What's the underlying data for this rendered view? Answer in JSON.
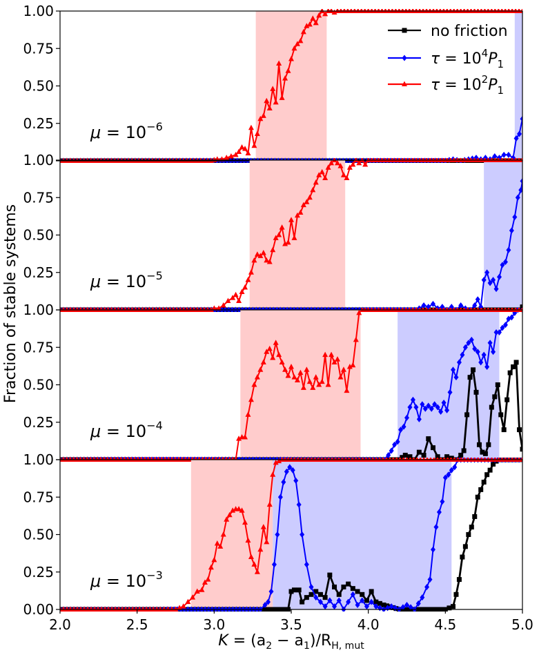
{
  "chart_data": {
    "type": "line",
    "ylabel": "Fraction of stable systems",
    "xlabel_parts": {
      "K": "K",
      "eq": " = (a",
      "s2": "2",
      "minus": " − a",
      "s1": "1",
      "close": ")/R",
      "sub": "H, mut"
    },
    "xlim": [
      2.0,
      5.0
    ],
    "ylim": [
      0.0,
      1.0
    ],
    "x_ticks": [
      "2.0",
      "2.5",
      "3.0",
      "3.5",
      "4.0",
      "4.5",
      "5.0"
    ],
    "y_ticks": [
      "0.00",
      "0.25",
      "0.50",
      "0.75",
      "1.00"
    ],
    "legend": [
      {
        "label": "no friction",
        "color": "#000000",
        "marker": "square"
      },
      {
        "label_base": "τ = 10",
        "label_exp": "4",
        "label_tail": "P",
        "label_sub": "1",
        "color": "#0000ff",
        "marker": "diamond"
      },
      {
        "label_base": "τ = 10",
        "label_exp": "2",
        "label_tail": "P",
        "label_sub": "1",
        "color": "#ff0000",
        "marker": "triangle"
      }
    ],
    "panels": [
      {
        "mu_base": "μ = 10",
        "mu_exp": "−6",
        "shaded": [
          {
            "x0": 3.27,
            "x1": 3.73,
            "color": "#ffcccc"
          },
          {
            "x0": 4.95,
            "x1": 5.0,
            "color": "#ccccff"
          }
        ],
        "series": {
          "red": {
            "x": [
              2.0,
              2.6,
              2.98,
              3.02,
              3.05,
              3.08,
              3.11,
              3.14,
              3.16,
              3.18,
              3.2,
              3.22,
              3.24,
              3.26,
              3.28,
              3.3,
              3.32,
              3.34,
              3.36,
              3.38,
              3.4,
              3.42,
              3.44,
              3.46,
              3.48,
              3.5,
              3.52,
              3.54,
              3.56,
              3.58,
              3.6,
              3.62,
              3.64,
              3.66,
              3.68,
              3.7,
              3.72,
              3.74,
              3.76,
              3.78,
              3.8,
              5.0
            ],
            "y": [
              0,
              0,
              0,
              0.01,
              0.01,
              0.02,
              0.03,
              0.04,
              0.06,
              0.09,
              0.08,
              0.05,
              0.22,
              0.1,
              0.18,
              0.28,
              0.3,
              0.4,
              0.35,
              0.48,
              0.39,
              0.65,
              0.42,
              0.55,
              0.6,
              0.68,
              0.75,
              0.78,
              0.8,
              0.86,
              0.9,
              0.91,
              0.95,
              0.92,
              0.97,
              1.0,
              0.98,
              1.0,
              1.0,
              0.99,
              1.0,
              1.0
            ]
          },
          "blue": {
            "x": [
              2.0,
              4.5,
              4.55,
              4.6,
              4.65,
              4.7,
              4.73,
              4.76,
              4.79,
              4.82,
              4.85,
              4.88,
              4.91,
              4.94,
              4.96,
              4.98,
              5.0
            ],
            "y": [
              0,
              0,
              0.01,
              0.0,
              0.01,
              0.02,
              0.01,
              0.02,
              0.01,
              0.03,
              0.02,
              0.04,
              0.04,
              0.02,
              0.15,
              0.18,
              0.28
            ]
          },
          "black": {
            "x": [
              2.0,
              5.0
            ],
            "y": [
              0,
              0
            ]
          }
        }
      },
      {
        "mu_base": "μ = 10",
        "mu_exp": "−5",
        "shaded": [
          {
            "x0": 3.23,
            "x1": 3.85,
            "color": "#ffcccc"
          },
          {
            "x0": 4.75,
            "x1": 5.0,
            "color": "#ccccff"
          }
        ],
        "series": {
          "red": {
            "x": [
              2.0,
              2.98,
              3.0,
              3.03,
              3.06,
              3.09,
              3.12,
              3.14,
              3.16,
              3.18,
              3.2,
              3.22,
              3.24,
              3.26,
              3.28,
              3.3,
              3.32,
              3.34,
              3.36,
              3.38,
              3.4,
              3.42,
              3.44,
              3.46,
              3.48,
              3.5,
              3.52,
              3.54,
              3.56,
              3.58,
              3.6,
              3.62,
              3.64,
              3.66,
              3.68,
              3.7,
              3.72,
              3.74,
              3.76,
              3.78,
              3.8,
              3.82,
              3.84,
              3.86,
              3.88,
              3.9,
              3.92,
              3.94,
              3.96,
              3.98,
              4.0,
              5.0
            ],
            "y": [
              0,
              0,
              0.01,
              0.01,
              0.03,
              0.06,
              0.08,
              0.1,
              0.06,
              0.12,
              0.15,
              0.2,
              0.25,
              0.33,
              0.37,
              0.36,
              0.38,
              0.33,
              0.32,
              0.4,
              0.48,
              0.5,
              0.55,
              0.44,
              0.45,
              0.6,
              0.48,
              0.63,
              0.65,
              0.7,
              0.72,
              0.75,
              0.8,
              0.85,
              0.9,
              0.92,
              0.88,
              0.95,
              0.98,
              1.0,
              0.98,
              0.96,
              0.9,
              0.88,
              0.95,
              0.97,
              1.0,
              0.98,
              1.0,
              0.97,
              1.0,
              1.0
            ]
          },
          "blue": {
            "x": [
              2.0,
              4.3,
              4.33,
              4.36,
              4.39,
              4.42,
              4.45,
              4.48,
              4.51,
              4.54,
              4.57,
              4.6,
              4.63,
              4.66,
              4.69,
              4.71,
              4.73,
              4.75,
              4.77,
              4.79,
              4.81,
              4.83,
              4.85,
              4.87,
              4.89,
              4.91,
              4.93,
              4.95,
              4.97,
              4.99,
              5.0
            ],
            "y": [
              0,
              0,
              0.01,
              0.03,
              0.02,
              0.04,
              0.01,
              0.02,
              0.0,
              0.02,
              0.0,
              0.03,
              0.01,
              0.0,
              0.03,
              0.07,
              0.02,
              0.2,
              0.25,
              0.18,
              0.2,
              0.14,
              0.22,
              0.3,
              0.32,
              0.4,
              0.53,
              0.62,
              0.75,
              0.8,
              0.86
            ]
          },
          "black": {
            "x": [
              2.0,
              4.97,
              5.0
            ],
            "y": [
              0,
              0,
              0.02
            ]
          }
        }
      },
      {
        "mu_base": "μ = 10",
        "mu_exp": "−4",
        "shaded": [
          {
            "x0": 3.17,
            "x1": 3.95,
            "color": "#ffcccc"
          },
          {
            "x0": 4.19,
            "x1": 4.85,
            "color": "#ccccff"
          }
        ],
        "series": {
          "red": {
            "x": [
              2.0,
              3.1,
              3.14,
              3.16,
              3.18,
              3.2,
              3.22,
              3.24,
              3.26,
              3.28,
              3.3,
              3.32,
              3.34,
              3.36,
              3.38,
              3.4,
              3.42,
              3.44,
              3.46,
              3.48,
              3.5,
              3.52,
              3.54,
              3.56,
              3.58,
              3.6,
              3.62,
              3.64,
              3.66,
              3.68,
              3.7,
              3.72,
              3.74,
              3.76,
              3.78,
              3.8,
              3.82,
              3.84,
              3.86,
              3.88,
              3.9,
              3.92,
              3.94,
              3.96,
              3.98,
              4.0,
              5.0
            ],
            "y": [
              0,
              0,
              0.0,
              0.14,
              0.15,
              0.15,
              0.3,
              0.4,
              0.5,
              0.55,
              0.6,
              0.65,
              0.72,
              0.74,
              0.68,
              0.78,
              0.7,
              0.65,
              0.6,
              0.56,
              0.62,
              0.55,
              0.53,
              0.58,
              0.48,
              0.6,
              0.52,
              0.48,
              0.55,
              0.5,
              0.52,
              0.7,
              0.5,
              0.7,
              0.65,
              0.67,
              0.55,
              0.6,
              0.46,
              0.62,
              0.63,
              0.8,
              0.98,
              1.0,
              1.0,
              1.0,
              1.0
            ]
          },
          "blue": {
            "x": [
              2.0,
              4.1,
              4.13,
              4.15,
              4.17,
              4.19,
              4.21,
              4.23,
              4.25,
              4.27,
              4.29,
              4.31,
              4.33,
              4.35,
              4.37,
              4.39,
              4.41,
              4.43,
              4.45,
              4.47,
              4.49,
              4.51,
              4.53,
              4.55,
              4.57,
              4.59,
              4.61,
              4.63,
              4.65,
              4.67,
              4.69,
              4.71,
              4.73,
              4.75,
              4.77,
              4.79,
              4.81,
              4.83,
              4.85,
              4.87,
              4.89,
              4.91,
              4.93,
              4.95,
              4.97,
              5.0
            ],
            "y": [
              0,
              0,
              0.03,
              0.06,
              0.1,
              0.12,
              0.2,
              0.22,
              0.28,
              0.35,
              0.4,
              0.35,
              0.27,
              0.37,
              0.34,
              0.36,
              0.34,
              0.37,
              0.35,
              0.32,
              0.38,
              0.33,
              0.45,
              0.6,
              0.55,
              0.65,
              0.7,
              0.75,
              0.78,
              0.8,
              0.74,
              0.72,
              0.65,
              0.7,
              0.62,
              0.78,
              0.72,
              0.85,
              0.85,
              0.88,
              0.9,
              0.94,
              0.95,
              0.98,
              1.0,
              1.0
            ]
          },
          "black": {
            "x": [
              2.0,
              4.2,
              4.24,
              4.27,
              4.3,
              4.33,
              4.36,
              4.39,
              4.42,
              4.45,
              4.48,
              4.51,
              4.54,
              4.57,
              4.6,
              4.62,
              4.64,
              4.66,
              4.68,
              4.7,
              4.72,
              4.74,
              4.76,
              4.78,
              4.8,
              4.82,
              4.84,
              4.86,
              4.88,
              4.9,
              4.92,
              4.94,
              4.96,
              4.98,
              5.0
            ],
            "y": [
              0,
              0,
              0.03,
              0.02,
              0.0,
              0.05,
              0.03,
              0.14,
              0.08,
              0.02,
              0.0,
              0.02,
              0.01,
              0.0,
              0.03,
              0.06,
              0.3,
              0.55,
              0.6,
              0.45,
              0.1,
              0.05,
              0.04,
              0.1,
              0.35,
              0.42,
              0.5,
              0.3,
              0.2,
              0.4,
              0.58,
              0.62,
              0.65,
              0.2,
              0.07
            ]
          }
        }
      },
      {
        "mu_base": "μ = 10",
        "mu_exp": "−3",
        "shaded": [
          {
            "x0": 2.85,
            "x1": 3.38,
            "color": "#ffcccc"
          },
          {
            "x0": 3.38,
            "x1": 4.54,
            "color": "#ccccff"
          }
        ],
        "series": {
          "red": {
            "x": [
              2.0,
              2.65,
              2.7,
              2.75,
              2.8,
              2.83,
              2.86,
              2.89,
              2.92,
              2.94,
              2.96,
              2.98,
              3.0,
              3.02,
              3.04,
              3.06,
              3.08,
              3.1,
              3.12,
              3.14,
              3.16,
              3.18,
              3.2,
              3.22,
              3.24,
              3.26,
              3.28,
              3.3,
              3.32,
              3.34,
              3.36,
              3.38,
              3.4,
              3.44,
              3.5,
              5.0
            ],
            "y": [
              0,
              0,
              0.0,
              0.0,
              0.02,
              0.05,
              0.08,
              0.12,
              0.13,
              0.18,
              0.2,
              0.28,
              0.33,
              0.44,
              0.42,
              0.5,
              0.6,
              0.63,
              0.66,
              0.67,
              0.67,
              0.66,
              0.58,
              0.46,
              0.35,
              0.3,
              0.25,
              0.4,
              0.55,
              0.45,
              0.7,
              0.9,
              0.98,
              1.0,
              1.0,
              1.0
            ]
          },
          "blue": {
            "x": [
              2.0,
              3.3,
              3.33,
              3.35,
              3.37,
              3.39,
              3.41,
              3.43,
              3.45,
              3.47,
              3.49,
              3.51,
              3.53,
              3.55,
              3.57,
              3.6,
              3.63,
              3.66,
              3.69,
              3.72,
              3.75,
              3.78,
              3.81,
              3.84,
              3.87,
              3.9,
              3.93,
              3.96,
              3.99,
              4.02,
              4.05,
              4.1,
              4.15,
              4.2,
              4.25,
              4.3,
              4.35,
              4.38,
              4.4,
              4.42,
              4.44,
              4.46,
              4.48,
              4.5,
              4.52,
              4.54,
              4.56,
              4.58,
              4.6,
              5.0
            ],
            "y": [
              0,
              0,
              0.03,
              0.05,
              0.12,
              0.3,
              0.5,
              0.75,
              0.85,
              0.92,
              0.95,
              0.93,
              0.86,
              0.7,
              0.5,
              0.3,
              0.15,
              0.08,
              0.05,
              0.02,
              0.06,
              0.02,
              0.06,
              0.0,
              0.05,
              0.1,
              0.03,
              0.06,
              0.02,
              0.05,
              0.02,
              0.0,
              0.02,
              0.0,
              0.03,
              0.0,
              0.08,
              0.15,
              0.2,
              0.4,
              0.55,
              0.65,
              0.72,
              0.88,
              0.9,
              0.93,
              0.95,
              1.0,
              1.0,
              1.0
            ]
          },
          "black": {
            "x": [
              2.0,
              3.48,
              3.5,
              3.52,
              3.55,
              3.57,
              3.6,
              3.63,
              3.66,
              3.69,
              3.72,
              3.75,
              3.78,
              3.81,
              3.84,
              3.87,
              3.9,
              3.93,
              3.96,
              3.99,
              4.02,
              4.05,
              4.1,
              4.2,
              4.3,
              4.4,
              4.5,
              4.55,
              4.57,
              4.59,
              4.61,
              4.63,
              4.65,
              4.67,
              4.69,
              4.71,
              4.73,
              4.75,
              4.77,
              4.79,
              4.81,
              4.83,
              4.85,
              4.87,
              5.0
            ],
            "y": [
              0,
              0,
              0.12,
              0.13,
              0.13,
              0.05,
              0.08,
              0.1,
              0.12,
              0.1,
              0.08,
              0.23,
              0.15,
              0.1,
              0.15,
              0.17,
              0.14,
              0.12,
              0.1,
              0.06,
              0.12,
              0.05,
              0.03,
              0.0,
              0.0,
              0.0,
              0.0,
              0.02,
              0.1,
              0.2,
              0.35,
              0.42,
              0.5,
              0.55,
              0.62,
              0.75,
              0.8,
              0.85,
              0.9,
              0.93,
              0.97,
              0.99,
              1.0,
              1.0,
              1.0
            ]
          }
        }
      }
    ]
  }
}
